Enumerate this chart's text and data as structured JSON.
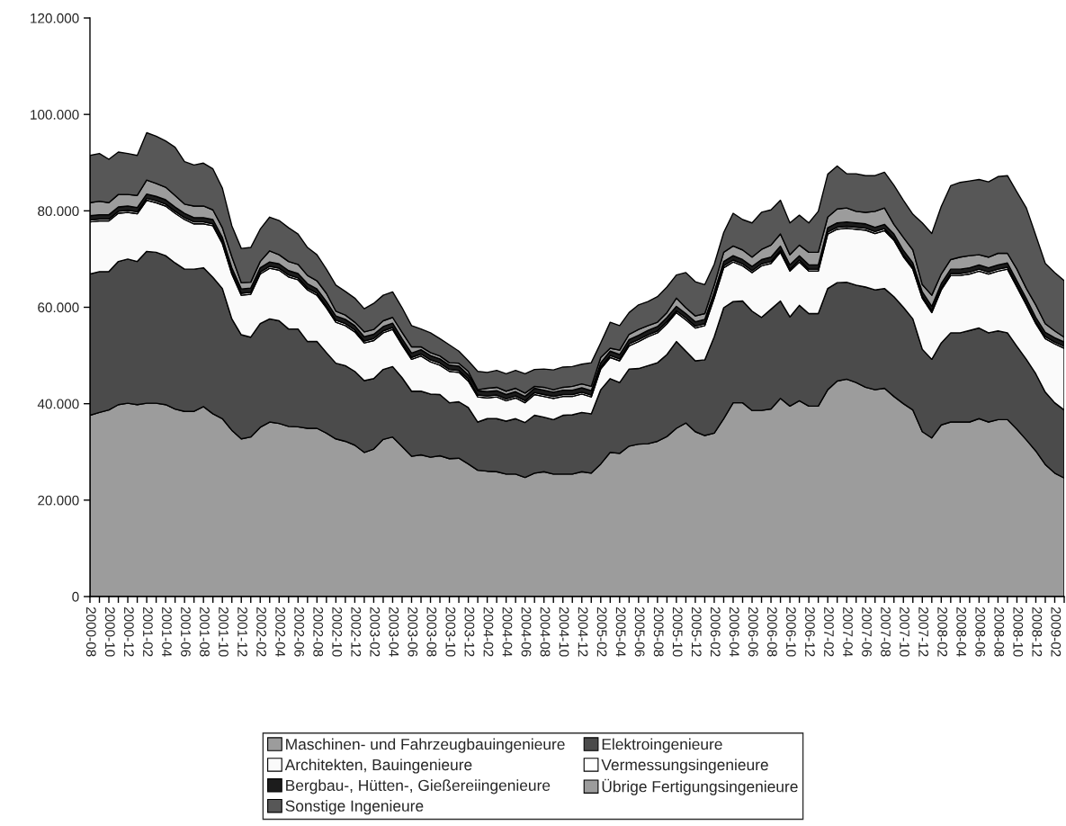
{
  "chart_data": {
    "type": "area",
    "stacked": true,
    "categories": [
      "2000-08",
      null,
      "2000-10",
      null,
      "2000-12",
      null,
      "2001-02",
      null,
      "2001-04",
      null,
      "2001-06",
      null,
      "2001-08",
      null,
      "2001-10",
      null,
      "2001-12",
      null,
      "2002-02",
      null,
      "2002-04",
      null,
      "2002-06",
      null,
      "2002-08",
      null,
      "2002-10",
      null,
      "2002-12",
      null,
      "2003-02",
      null,
      "2003-04",
      null,
      "2003-06",
      null,
      "2003-08",
      null,
      "2003-10",
      null,
      "2003-12",
      null,
      "2004-02",
      null,
      "2004-04",
      null,
      "2004-06",
      null,
      "2004-08",
      null,
      "2004-10",
      null,
      "2004-12",
      null,
      "2005-02",
      null,
      "2005-04",
      null,
      "2005-06",
      null,
      "2005-08",
      null,
      "2005-10",
      null,
      "2005-12",
      null,
      "2006-02",
      null,
      "2006-04",
      null,
      "2006-06",
      null,
      "2006-08",
      null,
      "2006-10",
      null,
      "2006-12",
      null,
      "2007-02",
      null,
      "2007-04",
      null,
      "2007-06",
      null,
      "2007-08",
      null,
      "2007-10",
      null,
      "2007-12",
      null,
      "2008-02",
      null,
      "2008-04",
      null,
      "2008-06",
      null,
      "2008-08",
      null,
      "2008-10",
      null,
      "2008-12",
      null,
      "2009-02",
      null
    ],
    "series": [
      {
        "name": "Maschinen- und Fahrzeugbauingenieure",
        "color": "#9c9c9c",
        "values": [
          37600,
          38200,
          38700,
          39800,
          40100,
          39800,
          40100,
          40100,
          39800,
          38900,
          38400,
          38400,
          39400,
          37900,
          36900,
          34500,
          32700,
          33100,
          35100,
          36200,
          35900,
          35300,
          35200,
          34900,
          34900,
          33900,
          32700,
          32200,
          31400,
          29900,
          30600,
          32600,
          33100,
          31100,
          29100,
          29400,
          28900,
          29200,
          28600,
          28700,
          27500,
          26200,
          26000,
          25900,
          25400,
          25400,
          24700,
          25600,
          25900,
          25400,
          25400,
          25400,
          25900,
          25600,
          27500,
          29900,
          29700,
          31200,
          31600,
          31700,
          32200,
          33200,
          34900,
          36000,
          34200,
          33400,
          33900,
          36900,
          40200,
          40200,
          38600,
          38600,
          38900,
          41100,
          39500,
          40600,
          39500,
          39500,
          42900,
          44700,
          45100,
          44400,
          43400,
          42900,
          43200,
          41500,
          40000,
          38700,
          34200,
          32900,
          35600,
          36200,
          36200,
          36200,
          36900,
          36200,
          36700,
          36700,
          34700,
          32500,
          30200,
          27400,
          25600,
          24600
        ]
      },
      {
        "name": "Elektroingenieure",
        "color": "#4b4b4b",
        "values": [
          29300,
          29200,
          28700,
          29700,
          29900,
          29700,
          31500,
          31300,
          30900,
          30300,
          29500,
          29500,
          28800,
          28300,
          27000,
          23100,
          21600,
          20700,
          21500,
          21400,
          21300,
          20200,
          20300,
          18000,
          18000,
          16700,
          15700,
          15700,
          15300,
          14900,
          14600,
          14500,
          14600,
          14300,
          13500,
          13200,
          13100,
          12700,
          11600,
          11700,
          11700,
          10000,
          10900,
          11000,
          11000,
          11500,
          11400,
          12000,
          11300,
          11300,
          12200,
          12300,
          12300,
          12300,
          15400,
          15300,
          14700,
          16000,
          15700,
          16200,
          16300,
          17000,
          18000,
          14900,
          14700,
          15700,
          20000,
          23000,
          21000,
          21100,
          20600,
          19300,
          20700,
          20200,
          18500,
          19800,
          19200,
          19200,
          21000,
          20400,
          20100,
          20200,
          20800,
          20700,
          20700,
          20700,
          20000,
          18900,
          17100,
          16300,
          17000,
          18500,
          18500,
          19000,
          18800,
          18500,
          18400,
          18000,
          17200,
          16700,
          16000,
          15000,
          14600,
          14100
        ]
      },
      {
        "name": "Architekten, Bauingenieure",
        "color": "#fafafa",
        "values": [
          10800,
          10500,
          10500,
          10000,
          9700,
          9900,
          10600,
          10300,
          10300,
          10300,
          10300,
          9400,
          9100,
          10700,
          9300,
          9300,
          8200,
          8900,
          10300,
          10500,
          10500,
          10800,
          10200,
          10700,
          9600,
          9300,
          8500,
          8300,
          8200,
          7800,
          7900,
          7600,
          7700,
          6800,
          6600,
          7300,
          6700,
          6100,
          6500,
          6100,
          5500,
          5200,
          4300,
          4500,
          4200,
          4300,
          4100,
          4300,
          4300,
          4400,
          3900,
          3800,
          3800,
          3500,
          4300,
          4400,
          4500,
          4800,
          5600,
          6000,
          6200,
          6400,
          6000,
          6500,
          6800,
          7100,
          8000,
          8300,
          8200,
          7300,
          8000,
          10700,
          9500,
          10100,
          9500,
          9000,
          8800,
          8800,
          11300,
          11100,
          11200,
          11600,
          11800,
          11700,
          12000,
          11700,
          10500,
          10300,
          10600,
          9700,
          11000,
          11900,
          11900,
          11700,
          11800,
          12200,
          12400,
          13200,
          12300,
          11300,
          10400,
          11100,
          12200,
          12800
        ]
      },
      {
        "name": "Vermessungsingenieure",
        "color": "#ffffff",
        "values": [
          400,
          400,
          400,
          400,
          400,
          400,
          400,
          400,
          400,
          400,
          400,
          400,
          400,
          400,
          400,
          400,
          400,
          400,
          400,
          400,
          400,
          400,
          400,
          400,
          400,
          400,
          400,
          400,
          400,
          400,
          400,
          400,
          400,
          400,
          400,
          400,
          400,
          400,
          400,
          400,
          400,
          400,
          400,
          400,
          400,
          400,
          400,
          400,
          400,
          400,
          400,
          400,
          400,
          400,
          400,
          400,
          400,
          400,
          400,
          400,
          400,
          400,
          400,
          400,
          400,
          400,
          400,
          400,
          400,
          400,
          400,
          400,
          400,
          400,
          400,
          400,
          400,
          400,
          400,
          400,
          400,
          400,
          400,
          400,
          400,
          400,
          400,
          400,
          400,
          400,
          400,
          400,
          400,
          400,
          400,
          400,
          400,
          400,
          400,
          400,
          400,
          400,
          400,
          400
        ]
      },
      {
        "name": "Bergbau-, Hütten-, Gießereiingenieure",
        "color": "#1c1c1c",
        "values": [
          900,
          900,
          900,
          900,
          900,
          900,
          900,
          900,
          900,
          900,
          900,
          900,
          900,
          900,
          900,
          900,
          900,
          900,
          900,
          900,
          900,
          900,
          900,
          900,
          900,
          900,
          900,
          900,
          900,
          900,
          900,
          900,
          900,
          900,
          900,
          900,
          900,
          900,
          900,
          900,
          900,
          900,
          900,
          900,
          900,
          900,
          900,
          900,
          900,
          900,
          900,
          900,
          900,
          900,
          900,
          900,
          900,
          900,
          900,
          900,
          900,
          900,
          900,
          900,
          900,
          900,
          900,
          900,
          900,
          900,
          900,
          900,
          900,
          900,
          900,
          900,
          900,
          900,
          900,
          900,
          900,
          900,
          900,
          900,
          900,
          900,
          900,
          900,
          900,
          900,
          900,
          900,
          900,
          900,
          900,
          900,
          900,
          900,
          900,
          900,
          900,
          900,
          900,
          900
        ]
      },
      {
        "name": "Übrige Fertigungsingenieure",
        "color": "#9c9c9c",
        "values": [
          2700,
          2800,
          2500,
          2600,
          2400,
          2500,
          2900,
          2700,
          2600,
          2400,
          1900,
          2400,
          2400,
          2000,
          2000,
          2300,
          1300,
          1200,
          1300,
          2300,
          1900,
          1900,
          1900,
          1700,
          1700,
          1700,
          1000,
          900,
          700,
          1000,
          1000,
          1200,
          1200,
          1300,
          1300,
          600,
          600,
          600,
          500,
          600,
          700,
          200,
          700,
          700,
          700,
          700,
          700,
          400,
          600,
          500,
          600,
          800,
          800,
          900,
          1100,
          600,
          900,
          1100,
          1200,
          1000,
          900,
          1000,
          1700,
          1200,
          1200,
          1200,
          1400,
          1900,
          2000,
          2000,
          1900,
          2100,
          2500,
          2500,
          2100,
          2200,
          2600,
          2600,
          2200,
          2900,
          2900,
          2400,
          2400,
          3300,
          3400,
          2000,
          2700,
          2700,
          1500,
          2300,
          2000,
          2000,
          2500,
          2500,
          2100,
          2200,
          2400,
          2000,
          2400,
          2100,
          2600,
          1800,
          1400,
          1000
        ]
      },
      {
        "name": "Sonstige Ingenieure",
        "color": "#575757",
        "values": [
          9800,
          9900,
          9000,
          8800,
          8500,
          8300,
          9800,
          9800,
          9600,
          10000,
          8800,
          8500,
          8900,
          8500,
          8200,
          6400,
          7100,
          7200,
          6700,
          7000,
          7100,
          7000,
          6300,
          5800,
          5400,
          5000,
          5400,
          4900,
          5000,
          4800,
          5400,
          5300,
          5300,
          5100,
          4400,
          3700,
          4100,
          3600,
          3700,
          2500,
          2200,
          3800,
          3300,
          3500,
          3600,
          3700,
          4000,
          3500,
          3800,
          4100,
          4200,
          4100,
          4100,
          4900,
          3000,
          5400,
          5100,
          4500,
          5100,
          5000,
          5300,
          5300,
          4800,
          7300,
          7100,
          6000,
          4300,
          4100,
          6800,
          6300,
          7100,
          7700,
          7300,
          7000,
          6600,
          6200,
          6100,
          8500,
          8900,
          8900,
          7100,
          7800,
          7600,
          7400,
          7400,
          8100,
          7700,
          7400,
          12800,
          12800,
          14000,
          15300,
          15500,
          15500,
          15600,
          15600,
          15900,
          16100,
          16000,
          16700,
          14400,
          12500,
          12100,
          11700
        ]
      }
    ],
    "ylim": [
      0,
      120000
    ],
    "yticks": [
      0,
      {
        "value": 20000,
        "label": "20.000"
      },
      {
        "value": 40000,
        "label": "40.000"
      },
      {
        "value": 60000,
        "label": "60.000"
      },
      {
        "value": 80000,
        "label": "80.000"
      },
      {
        "value": 100000,
        "label": "100.000"
      },
      {
        "value": 120000,
        "label": "120.000"
      }
    ],
    "grid": false,
    "legend": "bottom"
  }
}
